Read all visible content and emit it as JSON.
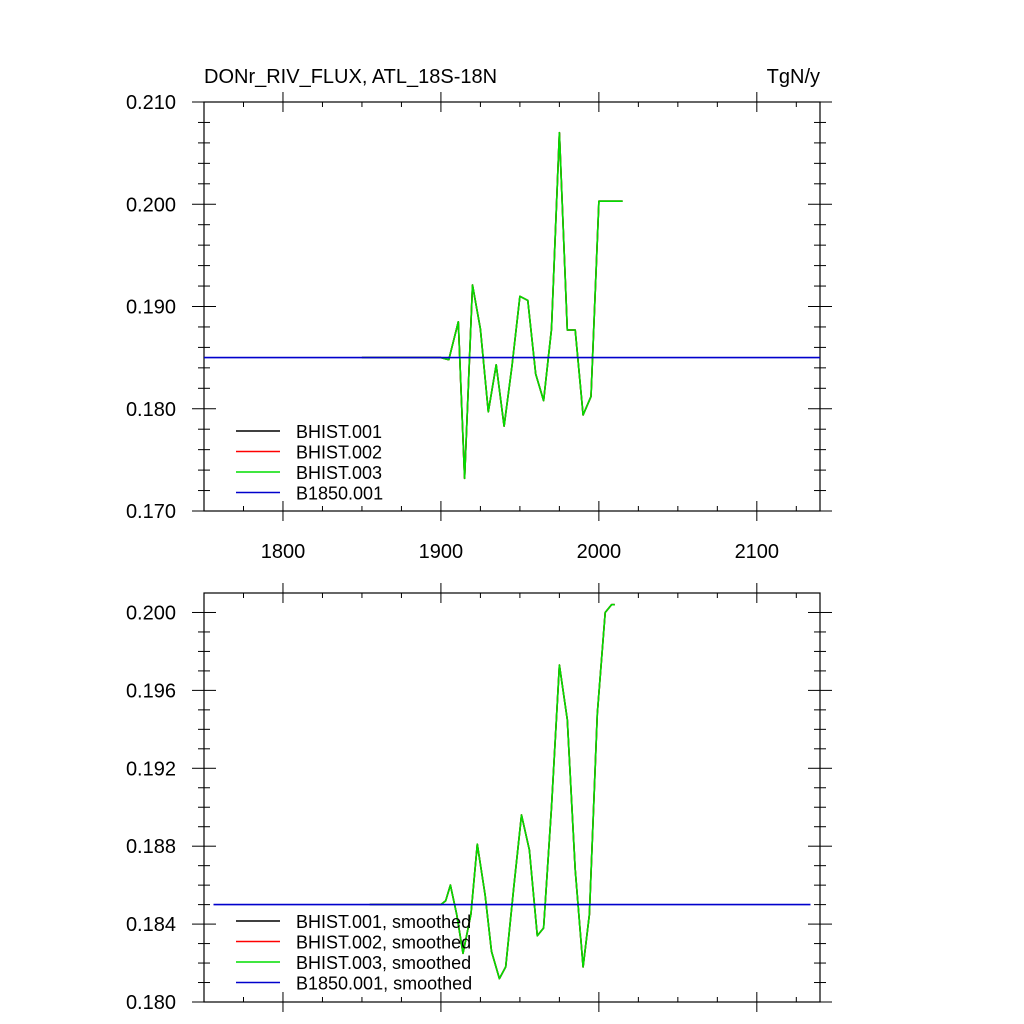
{
  "chart_data": [
    {
      "type": "line",
      "title": "DONr_RIV_FLUX, ATL_18S-18N",
      "units": "TgN/y",
      "xlim": [
        1750,
        2140
      ],
      "ylim": [
        0.17,
        0.21
      ],
      "x_ticks": [
        1800,
        1900,
        2000,
        2100
      ],
      "x_tick_labels": [
        "1800",
        "1900",
        "2000",
        "2100"
      ],
      "y_ticks": [
        0.17,
        0.18,
        0.19,
        0.2,
        0.21
      ],
      "y_tick_labels": [
        "0.170",
        "0.180",
        "0.190",
        "0.200",
        "0.210"
      ],
      "legend_position": "bottom-left",
      "series": [
        {
          "name": "BHIST.001",
          "color": "#000000",
          "x": [
            1850,
            1900,
            1905,
            1911,
            1915,
            1920,
            1925,
            1930,
            1935,
            1940,
            1945,
            1950,
            1955,
            1960,
            1965,
            1970,
            1975,
            1980,
            1985,
            1990,
            1995,
            2000,
            2005,
            2015
          ],
          "y": [
            0.185,
            0.185,
            0.1848,
            0.1885,
            0.1732,
            0.1921,
            0.1878,
            0.1797,
            0.1843,
            0.1783,
            0.1842,
            0.191,
            0.1906,
            0.1834,
            0.1808,
            0.1878,
            0.207,
            0.1877,
            0.1877,
            0.1794,
            0.1812,
            0.2003,
            0.2003,
            0.2003
          ]
        },
        {
          "name": "BHIST.002",
          "color": "#ff0000",
          "x": [
            1850,
            1900,
            1905,
            1911,
            1915,
            1920,
            1925,
            1930,
            1935,
            1940,
            1945,
            1950,
            1955,
            1960,
            1965,
            1970,
            1975,
            1980,
            1985,
            1990,
            1995,
            2000,
            2005,
            2015
          ],
          "y": [
            0.185,
            0.185,
            0.1848,
            0.1885,
            0.1732,
            0.1921,
            0.1878,
            0.1797,
            0.1843,
            0.1783,
            0.1842,
            0.191,
            0.1906,
            0.1834,
            0.1808,
            0.1878,
            0.207,
            0.1877,
            0.1877,
            0.1794,
            0.1812,
            0.2003,
            0.2003,
            0.2003
          ]
        },
        {
          "name": "BHIST.003",
          "color": "#00dd00",
          "x": [
            1850,
            1900,
            1905,
            1911,
            1915,
            1920,
            1925,
            1930,
            1935,
            1940,
            1945,
            1950,
            1955,
            1960,
            1965,
            1970,
            1975,
            1980,
            1985,
            1990,
            1995,
            2000,
            2005,
            2015
          ],
          "y": [
            0.185,
            0.185,
            0.1848,
            0.1885,
            0.1732,
            0.1921,
            0.1878,
            0.1797,
            0.1843,
            0.1783,
            0.1842,
            0.191,
            0.1906,
            0.1834,
            0.1808,
            0.1878,
            0.207,
            0.1877,
            0.1877,
            0.1794,
            0.1812,
            0.2003,
            0.2003,
            0.2003
          ]
        },
        {
          "name": "B1850.001",
          "color": "#0000cc",
          "x": [
            1750,
            2140
          ],
          "y": [
            0.185,
            0.185
          ]
        }
      ]
    },
    {
      "type": "line",
      "xlim": [
        1750,
        2140
      ],
      "ylim": [
        0.18,
        0.201
      ],
      "x_ticks": [
        1800,
        1900,
        2000,
        2100
      ],
      "y_ticks": [
        0.18,
        0.184,
        0.188,
        0.192,
        0.196,
        0.2
      ],
      "y_tick_labels": [
        "0.180",
        "0.184",
        "0.188",
        "0.192",
        "0.196",
        "0.200"
      ],
      "legend_position": "bottom-left",
      "series": [
        {
          "name": "BHIST.001, smoothed",
          "color": "#000000",
          "x": [
            1855,
            1900,
            1903,
            1906,
            1910,
            1914,
            1919,
            1923,
            1928,
            1932,
            1937,
            1941,
            1946,
            1951,
            1956,
            1961,
            1965,
            1970,
            1975,
            1980,
            1985,
            1990,
            1994,
            1999,
            2004,
            2008,
            2010
          ],
          "y": [
            0.185,
            0.185,
            0.1852,
            0.186,
            0.1845,
            0.1825,
            0.1845,
            0.1881,
            0.1855,
            0.1826,
            0.1812,
            0.1818,
            0.1858,
            0.1896,
            0.1878,
            0.1834,
            0.1838,
            0.19,
            0.1973,
            0.1945,
            0.1868,
            0.1818,
            0.1845,
            0.1948,
            0.2,
            0.2004,
            0.2004
          ]
        },
        {
          "name": "BHIST.002, smoothed",
          "color": "#ff0000",
          "x": [
            1855,
            1900,
            1903,
            1906,
            1910,
            1914,
            1919,
            1923,
            1928,
            1932,
            1937,
            1941,
            1946,
            1951,
            1956,
            1961,
            1965,
            1970,
            1975,
            1980,
            1985,
            1990,
            1994,
            1999,
            2004,
            2008,
            2010
          ],
          "y": [
            0.185,
            0.185,
            0.1852,
            0.186,
            0.1845,
            0.1825,
            0.1845,
            0.1881,
            0.1855,
            0.1826,
            0.1812,
            0.1818,
            0.1858,
            0.1896,
            0.1878,
            0.1834,
            0.1838,
            0.19,
            0.1973,
            0.1945,
            0.1868,
            0.1818,
            0.1845,
            0.1948,
            0.2,
            0.2004,
            0.2004
          ]
        },
        {
          "name": "BHIST.003, smoothed",
          "color": "#00dd00",
          "x": [
            1855,
            1900,
            1903,
            1906,
            1910,
            1914,
            1919,
            1923,
            1928,
            1932,
            1937,
            1941,
            1946,
            1951,
            1956,
            1961,
            1965,
            1970,
            1975,
            1980,
            1985,
            1990,
            1994,
            1999,
            2004,
            2008,
            2010
          ],
          "y": [
            0.185,
            0.185,
            0.1852,
            0.186,
            0.1845,
            0.1825,
            0.1845,
            0.1881,
            0.1855,
            0.1826,
            0.1812,
            0.1818,
            0.1858,
            0.1896,
            0.1878,
            0.1834,
            0.1838,
            0.19,
            0.1973,
            0.1945,
            0.1868,
            0.1818,
            0.1845,
            0.1948,
            0.2,
            0.2004,
            0.2004
          ]
        },
        {
          "name": "B1850.001, smoothed",
          "color": "#0000cc",
          "x": [
            1756,
            2134
          ],
          "y": [
            0.185,
            0.185
          ]
        }
      ]
    }
  ]
}
